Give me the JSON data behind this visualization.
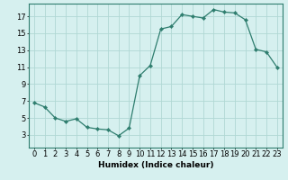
{
  "x": [
    0,
    1,
    2,
    3,
    4,
    5,
    6,
    7,
    8,
    9,
    10,
    11,
    12,
    13,
    14,
    15,
    16,
    17,
    18,
    19,
    20,
    21,
    22,
    23
  ],
  "y": [
    6.8,
    6.3,
    5.0,
    4.6,
    4.9,
    3.9,
    3.7,
    3.6,
    2.9,
    3.8,
    10.0,
    11.2,
    15.5,
    15.8,
    17.2,
    17.0,
    16.8,
    17.8,
    17.5,
    17.4,
    16.6,
    13.1,
    12.8,
    11.0
  ],
  "line_color": "#2e7d6e",
  "marker": "D",
  "marker_size": 2.2,
  "bg_color": "#d6f0ef",
  "grid_color": "#b0d8d4",
  "xlabel": "Humidex (Indice chaleur)",
  "xlim": [
    -0.5,
    23.5
  ],
  "ylim": [
    1.5,
    18.5
  ],
  "xticks": [
    0,
    1,
    2,
    3,
    4,
    5,
    6,
    7,
    8,
    9,
    10,
    11,
    12,
    13,
    14,
    15,
    16,
    17,
    18,
    19,
    20,
    21,
    22,
    23
  ],
  "yticks": [
    3,
    5,
    7,
    9,
    11,
    13,
    15,
    17
  ],
  "xlabel_fontsize": 6.5,
  "tick_fontsize": 6.0
}
